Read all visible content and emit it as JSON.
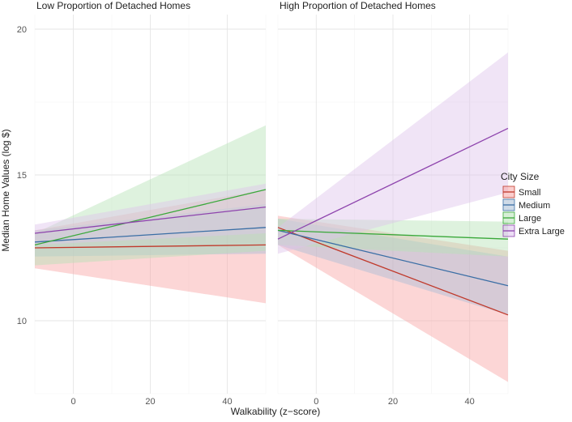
{
  "chart_data": {
    "type": "line",
    "title": "",
    "xlabel": "Walkability (z−score)",
    "ylabel": "Median Home Values (log $)",
    "xlim": [
      -10,
      50
    ],
    "ylim": [
      7.5,
      20.5
    ],
    "xticks": [
      0,
      20,
      40
    ],
    "xtick_labels": [
      "0",
      "20",
      "40"
    ],
    "yticks": [
      10,
      15,
      20
    ],
    "ytick_labels": [
      "10",
      "15",
      "20"
    ],
    "grid": true,
    "legend_position": "right",
    "legend_title": "City Size",
    "legend": [
      {
        "name": "Small",
        "color": "#c0392b",
        "fill": "#f8a5a5"
      },
      {
        "name": "Medium",
        "color": "#3a6ea5",
        "fill": "#a8bdd6"
      },
      {
        "name": "Large",
        "color": "#3aa83a",
        "fill": "#b6e3b6"
      },
      {
        "name": "Extra Large",
        "color": "#8e44ad",
        "fill": "#ddc3ec"
      }
    ],
    "panels": [
      {
        "title": "Low Proportion of Detached Homes",
        "series": [
          {
            "name": "Small",
            "x": [
              -10,
              50
            ],
            "y": [
              12.5,
              12.6
            ],
            "lower": [
              11.8,
              10.6
            ],
            "upper": [
              13.1,
              14.5
            ]
          },
          {
            "name": "Medium",
            "x": [
              -10,
              50
            ],
            "y": [
              12.7,
              13.2
            ],
            "lower": [
              12.2,
              12.3
            ],
            "upper": [
              13.1,
              14.0
            ]
          },
          {
            "name": "Large",
            "x": [
              -10,
              50
            ],
            "y": [
              12.6,
              14.5
            ],
            "lower": [
              11.9,
              12.4
            ],
            "upper": [
              13.0,
              16.7
            ]
          },
          {
            "name": "Extra Large",
            "x": [
              -10,
              50
            ],
            "y": [
              13.0,
              13.9
            ],
            "lower": [
              12.6,
              13.0
            ],
            "upper": [
              13.3,
              14.7
            ]
          }
        ]
      },
      {
        "title": "High Proportion of Detached Homes",
        "series": [
          {
            "name": "Small",
            "x": [
              -10,
              50
            ],
            "y": [
              13.2,
              10.2
            ],
            "lower": [
              12.6,
              7.9
            ],
            "upper": [
              13.6,
              12.4
            ]
          },
          {
            "name": "Medium",
            "x": [
              -10,
              50
            ],
            "y": [
              13.1,
              11.2
            ],
            "lower": [
              12.6,
              10.2
            ],
            "upper": [
              13.5,
              12.2
            ]
          },
          {
            "name": "Large",
            "x": [
              -10,
              50
            ],
            "y": [
              13.1,
              12.8
            ],
            "lower": [
              12.6,
              12.2
            ],
            "upper": [
              13.5,
              13.4
            ]
          },
          {
            "name": "Extra Large",
            "x": [
              -10,
              50
            ],
            "y": [
              12.8,
              16.6
            ],
            "lower": [
              12.3,
              14.4
            ],
            "upper": [
              13.2,
              19.2
            ]
          }
        ]
      }
    ]
  }
}
